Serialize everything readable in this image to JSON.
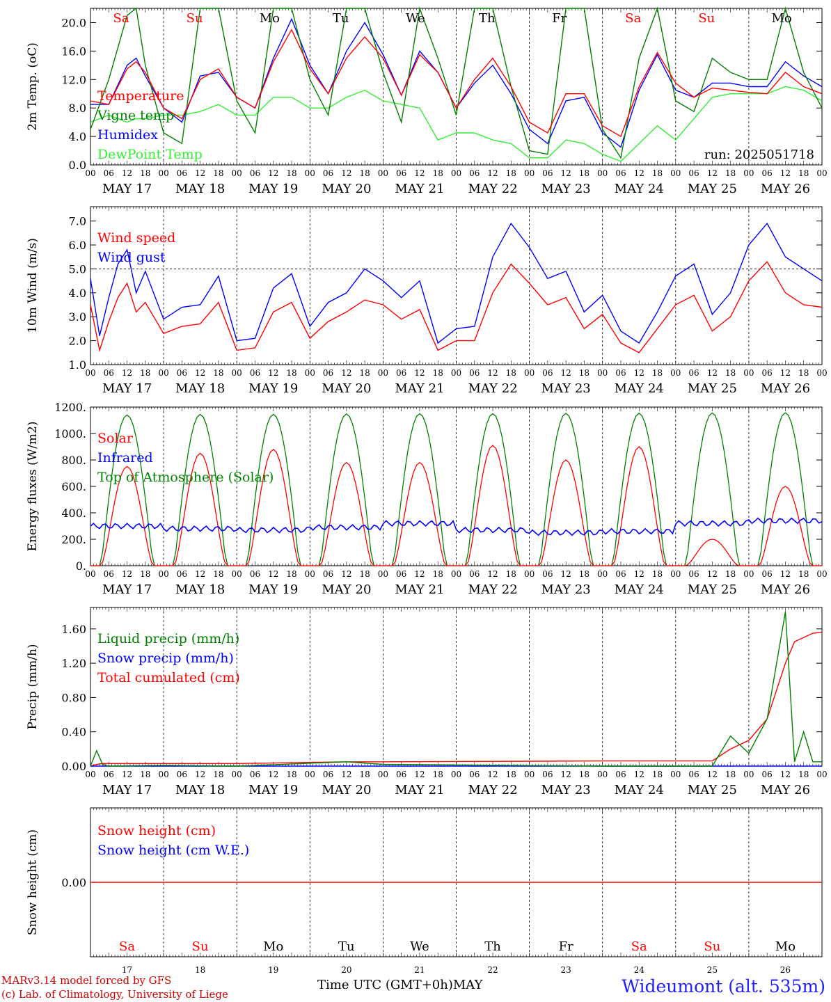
{
  "run_label": "run: 2025051718",
  "x_axis_title": "Time UTC (GMT+0h)MAY",
  "site_label": "Wideumont (alt. 535m)",
  "credits": [
    "MARv3.14 model forced by GFS",
    "(c) Lab. of Climatology, University of Liege"
  ],
  "hour_ticks": [
    "00",
    "06",
    "12",
    "18"
  ],
  "date_labels": [
    "MAY 17",
    "MAY 18",
    "MAY 19",
    "MAY 20",
    "MAY 21",
    "MAY 22",
    "MAY 23",
    "MAY 24",
    "MAY 25",
    "MAY 26"
  ],
  "weekday_labels": [
    "Sa",
    "Su",
    "Mo",
    "Tu",
    "We",
    "Th",
    "Fr",
    "Sa",
    "Su",
    "Mo"
  ],
  "weekend_flags": [
    true,
    true,
    false,
    false,
    false,
    false,
    false,
    true,
    true,
    false
  ],
  "day_numbers": [
    "17",
    "18",
    "19",
    "20",
    "21",
    "22",
    "23",
    "24",
    "25",
    "26"
  ],
  "colors": {
    "red": "#ff0000",
    "green": "#008000",
    "blue": "#0000ff",
    "lime": "#33ee33",
    "weekend": "#ff0000",
    "weekday": "#000000"
  },
  "chart_data": [
    {
      "type": "line",
      "ylabel": "2m Temp. (oC)",
      "ylim": [
        0,
        22
      ],
      "yticks": [
        "0.0",
        "4.0",
        "8.0",
        "12.0",
        "16.0",
        "20.0"
      ],
      "x_hours": [
        0,
        6,
        12,
        15,
        18,
        24,
        30,
        36,
        42,
        48,
        54,
        60,
        66,
        72,
        78,
        84,
        90,
        96,
        102,
        108,
        114,
        120,
        126,
        132,
        138,
        144,
        150,
        156,
        162,
        168,
        174,
        180,
        186,
        192,
        198,
        204,
        210,
        216,
        222,
        228,
        234,
        240
      ],
      "series": [
        {
          "name": "Temperature",
          "color": "#ff0000",
          "values": [
            9.0,
            8.5,
            13.5,
            14.5,
            13.0,
            8.0,
            6.5,
            12.0,
            13.5,
            9.5,
            8.0,
            14.5,
            19.0,
            13.5,
            10.0,
            15.0,
            18.0,
            15.0,
            9.8,
            15.5,
            13.0,
            8.0,
            12.0,
            15.0,
            11.0,
            6.0,
            4.5,
            10.0,
            10.0,
            5.5,
            4.0,
            11.0,
            15.8,
            11.5,
            9.5,
            10.8,
            10.5,
            10.2,
            10.0,
            13.0,
            11.0,
            10.0
          ]
        },
        {
          "name": "Vigne temp",
          "color": "#008000",
          "values": [
            5.0,
            12.0,
            21.0,
            22.0,
            14.0,
            4.5,
            3.0,
            22.0,
            22.0,
            9.0,
            4.5,
            22.0,
            22.0,
            12.0,
            7.0,
            22.0,
            22.0,
            13.0,
            6.0,
            22.0,
            15.0,
            7.0,
            22.0,
            22.0,
            11.0,
            2.0,
            1.5,
            22.0,
            22.0,
            5.0,
            1.0,
            15.0,
            22.0,
            9.0,
            7.5,
            15.0,
            13.0,
            12.0,
            12.0,
            22.0,
            13.0,
            8.0
          ]
        },
        {
          "name": "Humidex",
          "color": "#0000ff",
          "values": [
            8.5,
            8.5,
            14.0,
            15.0,
            12.5,
            8.0,
            6.0,
            12.5,
            13.0,
            9.5,
            8.0,
            15.0,
            20.5,
            14.0,
            10.0,
            16.0,
            20.0,
            15.5,
            9.8,
            16.0,
            13.0,
            8.0,
            11.5,
            14.0,
            10.0,
            5.0,
            3.0,
            9.0,
            9.5,
            4.5,
            2.5,
            10.5,
            15.5,
            10.5,
            9.5,
            11.5,
            11.5,
            11.0,
            11.0,
            14.5,
            12.5,
            11.0
          ]
        },
        {
          "name": "DewPoint Temp",
          "color": "#33ee33",
          "values": [
            6.0,
            7.0,
            6.0,
            6.5,
            6.5,
            7.0,
            7.0,
            7.5,
            8.5,
            7.0,
            7.0,
            9.5,
            9.5,
            8.0,
            8.0,
            9.5,
            10.5,
            9.0,
            8.5,
            8.0,
            3.5,
            4.5,
            4.5,
            3.5,
            3.0,
            1.0,
            1.0,
            3.5,
            3.0,
            1.5,
            0.5,
            3.0,
            5.5,
            3.5,
            6.5,
            9.5,
            10.0,
            10.0,
            10.0,
            11.0,
            10.5,
            9.0
          ]
        }
      ]
    },
    {
      "type": "line",
      "ylabel": "10m Wind (m/s)",
      "ylim": [
        1,
        7.6
      ],
      "yticks": [
        "1.0",
        "2.0",
        "3.0",
        "4.0",
        "5.0",
        "6.0",
        "7.0"
      ],
      "reference_line": 5.0,
      "x_hours": [
        0,
        3,
        6,
        9,
        12,
        15,
        18,
        24,
        30,
        36,
        42,
        48,
        54,
        60,
        66,
        72,
        78,
        84,
        90,
        96,
        102,
        108,
        114,
        120,
        126,
        132,
        138,
        144,
        150,
        156,
        162,
        168,
        174,
        180,
        186,
        192,
        198,
        204,
        210,
        216,
        222,
        228,
        234,
        240
      ],
      "series": [
        {
          "name": "Wind speed",
          "color": "#ff0000",
          "values": [
            3.5,
            1.6,
            2.8,
            3.8,
            4.4,
            3.2,
            3.6,
            2.3,
            2.6,
            2.7,
            3.6,
            1.6,
            1.7,
            3.2,
            3.6,
            2.1,
            2.8,
            3.2,
            3.7,
            3.5,
            2.9,
            3.3,
            1.6,
            2.0,
            2.0,
            4.0,
            5.2,
            4.4,
            3.5,
            3.8,
            2.5,
            3.1,
            1.9,
            1.5,
            2.5,
            3.5,
            3.9,
            2.4,
            3.0,
            4.5,
            5.3,
            4.0,
            3.5,
            3.4
          ]
        },
        {
          "name": "Wind gust",
          "color": "#0000ff",
          "values": [
            4.6,
            2.2,
            3.8,
            5.2,
            5.8,
            4.0,
            4.9,
            2.9,
            3.4,
            3.5,
            4.7,
            2.0,
            2.1,
            4.2,
            4.8,
            2.6,
            3.6,
            4.0,
            5.0,
            4.5,
            3.8,
            4.5,
            1.9,
            2.5,
            2.6,
            5.5,
            6.9,
            5.9,
            4.6,
            4.9,
            3.2,
            3.9,
            2.4,
            1.9,
            3.2,
            4.7,
            5.2,
            3.1,
            4.0,
            6.0,
            6.9,
            5.5,
            5.0,
            4.5
          ]
        }
      ]
    },
    {
      "type": "line",
      "ylabel": "Energy fluxes (W/m2)",
      "ylim": [
        0,
        1200
      ],
      "yticks": [
        "0.",
        "200.",
        "400.",
        "600.",
        "800.",
        "1000.",
        "1200."
      ],
      "x_hours": "0..240 step 1",
      "series": [
        {
          "name": "Solar",
          "color": "#ff0000",
          "daily_peaks": [
            750,
            850,
            880,
            780,
            780,
            910,
            800,
            900,
            200,
            600
          ]
        },
        {
          "name": "Infrared",
          "color": "#0000ff",
          "daily_means": [
            300,
            280,
            270,
            290,
            320,
            270,
            250,
            260,
            320,
            340
          ]
        },
        {
          "name": "Top of Atmosphere (Solar)",
          "color": "#008000",
          "daily_peaks": [
            1140,
            1145,
            1145,
            1148,
            1150,
            1150,
            1152,
            1153,
            1155,
            1157
          ]
        }
      ]
    },
    {
      "type": "line",
      "ylabel": "Precip (mm/h)",
      "ylim": [
        0,
        1.85
      ],
      "yticks": [
        "0.00",
        "0.40",
        "0.80",
        "1.20",
        "1.60"
      ],
      "x_hours": [
        0,
        2,
        4,
        6,
        24,
        48,
        84,
        96,
        168,
        204,
        210,
        216,
        222,
        228,
        231,
        234,
        237,
        240
      ],
      "series": [
        {
          "name": "Liquid precip (mm/h)",
          "color": "#008000",
          "values": [
            0.0,
            0.18,
            0.02,
            0.0,
            0.01,
            0.0,
            0.05,
            0.02,
            0.0,
            0.0,
            0.35,
            0.15,
            0.55,
            1.8,
            0.05,
            0.4,
            0.05,
            0.05
          ]
        },
        {
          "name": "Snow precip (mm/h)",
          "color": "#0000ff",
          "values": [
            0,
            0,
            0,
            0,
            0,
            0,
            0,
            0,
            0,
            0,
            0,
            0,
            0,
            0,
            0,
            0,
            0,
            0
          ]
        },
        {
          "name": "Total cumulated (cm)",
          "color": "#ff0000",
          "values": [
            0.0,
            0.02,
            0.03,
            0.03,
            0.03,
            0.03,
            0.05,
            0.05,
            0.06,
            0.06,
            0.2,
            0.3,
            0.55,
            1.2,
            1.45,
            1.5,
            1.55,
            1.56
          ]
        }
      ]
    },
    {
      "type": "line",
      "ylabel": "Snow height (cm)",
      "ylim": [
        -1,
        1
      ],
      "yticks": [
        "0.00"
      ],
      "series": [
        {
          "name": "Snow height (cm)",
          "color": "#ff0000",
          "values": [
            0,
            0
          ]
        },
        {
          "name": "Snow height (cm W.E.)",
          "color": "#0000ff",
          "values": [
            0,
            0
          ]
        }
      ]
    }
  ]
}
